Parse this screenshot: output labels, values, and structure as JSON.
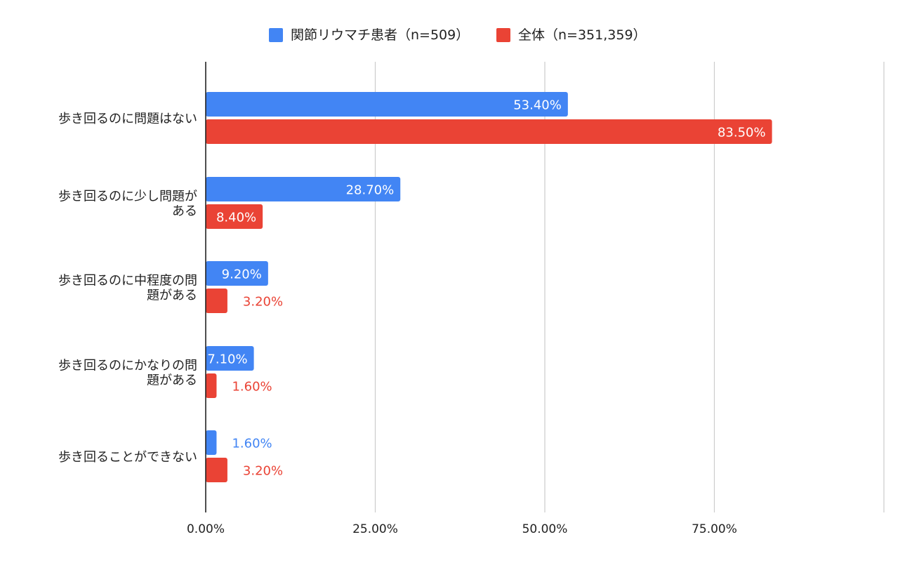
{
  "chart_data": {
    "type": "bar",
    "orientation": "horizontal",
    "categories": [
      [
        "歩き回るのに問題はない"
      ],
      [
        "歩き回るのに少し問題が",
        "ある"
      ],
      [
        "歩き回るのに中程度の問",
        "題がある"
      ],
      [
        "歩き回るのにかなりの問",
        "題がある"
      ],
      [
        "歩き回ることができない"
      ]
    ],
    "series": [
      {
        "name": "関節リウマチ患者（n=509）",
        "color": "#4285F4",
        "values": [
          53.4,
          28.7,
          9.2,
          7.1,
          1.6
        ],
        "labels": [
          "53.40%",
          "28.70%",
          "9.20%",
          "7.10%",
          "1.60%"
        ]
      },
      {
        "name": "全体（n=351,359）",
        "color": "#EA4335",
        "values": [
          83.5,
          8.4,
          3.2,
          1.6,
          3.2
        ],
        "labels": [
          "83.50%",
          "8.40%",
          "3.20%",
          "1.60%",
          "3.20%"
        ]
      }
    ],
    "x_ticks": [
      0,
      25,
      50,
      75,
      100
    ],
    "x_tick_labels": [
      "0.00%",
      "25.00%",
      "50.00%",
      "75.00%",
      ""
    ],
    "xlim": [
      0,
      100
    ],
    "grid": true,
    "legend_position": "top-center"
  }
}
